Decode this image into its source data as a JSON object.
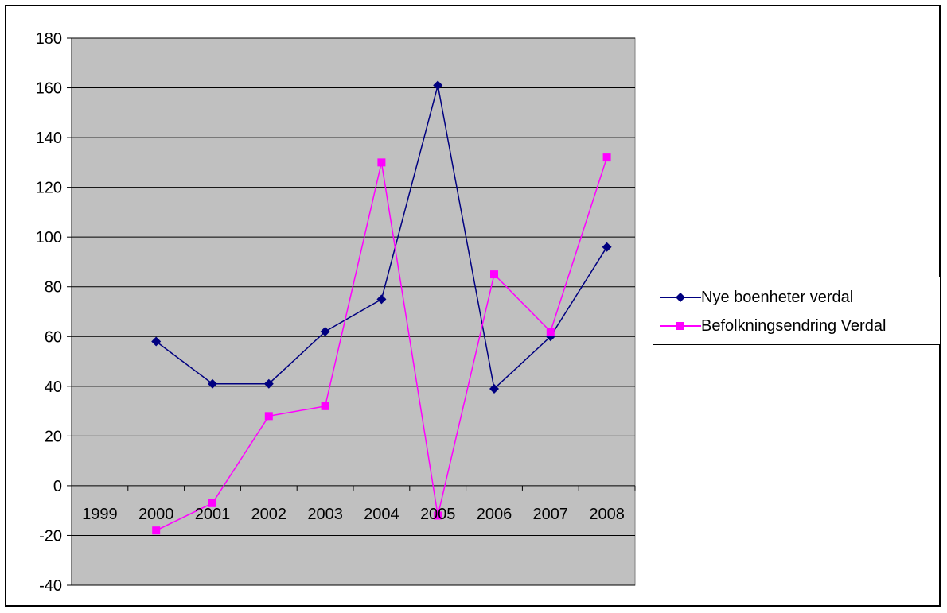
{
  "chart_data": {
    "type": "line",
    "categories": [
      "1999",
      "2000",
      "2001",
      "2002",
      "2003",
      "2004",
      "2005",
      "2006",
      "2007",
      "2008"
    ],
    "ylim": [
      -40,
      180
    ],
    "yticks": [
      -40,
      -20,
      0,
      20,
      40,
      60,
      80,
      100,
      120,
      140,
      160,
      180
    ],
    "grid": true,
    "legend_position": "right",
    "plot_background": "#c0c0c0",
    "series": [
      {
        "name": "Nye boenheter verdal",
        "color": "#000080",
        "marker": "diamond",
        "points": [
          {
            "x": "2000",
            "y": 58
          },
          {
            "x": "2001",
            "y": 41
          },
          {
            "x": "2002",
            "y": 41
          },
          {
            "x": "2003",
            "y": 62
          },
          {
            "x": "2004",
            "y": 75
          },
          {
            "x": "2005",
            "y": 161
          },
          {
            "x": "2006",
            "y": 39
          },
          {
            "x": "2007",
            "y": 60
          },
          {
            "x": "2008",
            "y": 96
          }
        ]
      },
      {
        "name": "Befolkningsendring Verdal",
        "color": "#ff00ff",
        "marker": "square",
        "points": [
          {
            "x": "2000",
            "y": -18
          },
          {
            "x": "2001",
            "y": -7
          },
          {
            "x": "2002",
            "y": 28
          },
          {
            "x": "2003",
            "y": 32
          },
          {
            "x": "2004",
            "y": 130
          },
          {
            "x": "2005",
            "y": -12
          },
          {
            "x": "2006",
            "y": 85
          },
          {
            "x": "2007",
            "y": 62
          },
          {
            "x": "2008",
            "y": 132
          }
        ]
      }
    ]
  }
}
